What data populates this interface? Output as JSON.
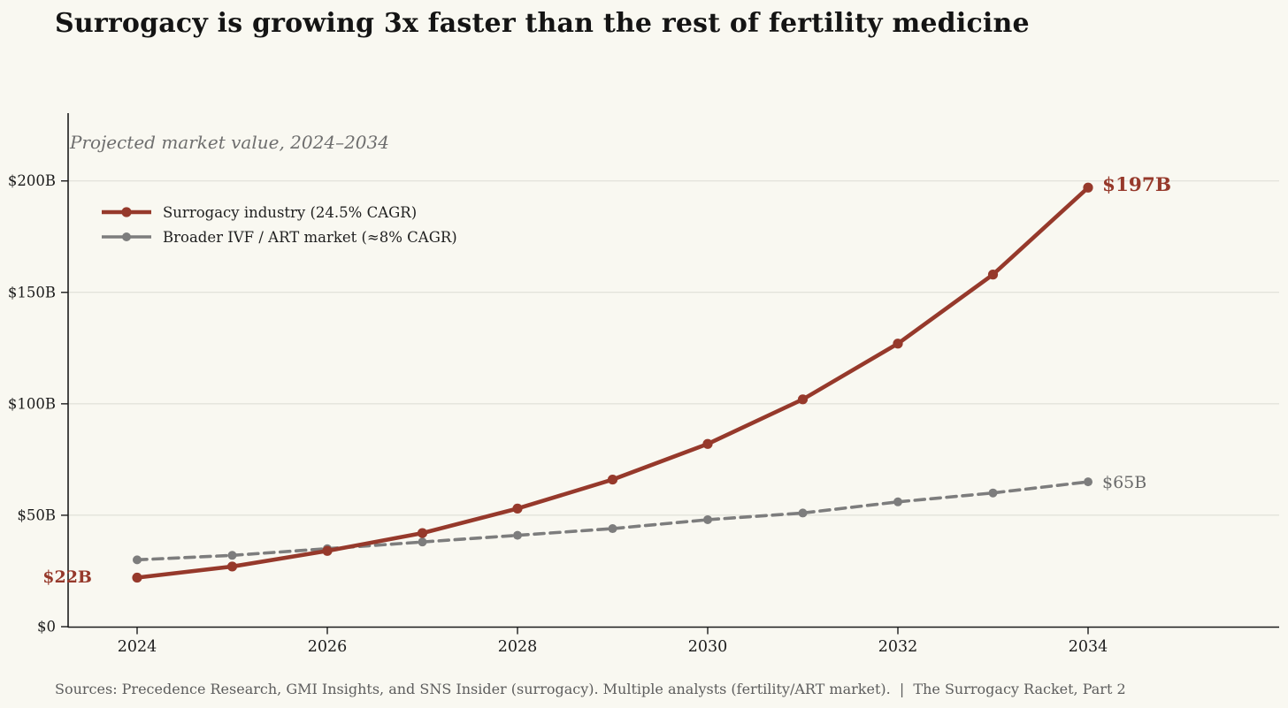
{
  "page": {
    "background_color": "#f9f8f1"
  },
  "header": {
    "title": "Surrogacy is growing 3x faster than the rest of fertility medicine"
  },
  "chart_data": {
    "type": "line",
    "title": "Surrogacy is growing 3x faster than the rest of fertility medicine",
    "subtitle": "Projected market value, 2024–2034",
    "x": [
      2024,
      2025,
      2026,
      2027,
      2028,
      2029,
      2030,
      2031,
      2032,
      2033,
      2034
    ],
    "series": [
      {
        "name": "Surrogacy industry (24.5% CAGR)",
        "color": "#96392b",
        "line_style": "solid",
        "marker": "circle",
        "values": [
          22,
          27,
          34,
          42,
          53,
          66,
          82,
          102,
          127,
          158,
          197
        ]
      },
      {
        "name": "Broader IVF / ART market (≈8% CAGR)",
        "color": "#7d7d7d",
        "line_style": "dashed",
        "marker": "circle",
        "values": [
          30,
          32,
          35,
          38,
          41,
          44,
          48,
          51,
          56,
          60,
          65
        ]
      }
    ],
    "xlabel": "",
    "ylabel": "",
    "ylim": [
      0,
      231
    ],
    "xlim": [
      2023.3,
      2036
    ],
    "grid": "horizontal",
    "legend_position": "upper-left-inside",
    "y_ticks": [
      {
        "value": 0,
        "label": "$0"
      },
      {
        "value": 50,
        "label": "$50B"
      },
      {
        "value": 100,
        "label": "$100B"
      },
      {
        "value": 150,
        "label": "$150B"
      },
      {
        "value": 200,
        "label": "$200B"
      }
    ],
    "x_ticks": [
      {
        "value": 2024,
        "label": "2024"
      },
      {
        "value": 2026,
        "label": "2026"
      },
      {
        "value": 2028,
        "label": "2028"
      },
      {
        "value": 2030,
        "label": "2030"
      },
      {
        "value": 2032,
        "label": "2032"
      },
      {
        "value": 2034,
        "label": "2034"
      }
    ],
    "annotations": [
      {
        "text": "$22B",
        "color": "#96392b",
        "refers_to": "surrogacy-2024"
      },
      {
        "text": "$197B",
        "color": "#96392b",
        "refers_to": "surrogacy-2034"
      },
      {
        "text": "$65B",
        "color": "#6b6b6b",
        "refers_to": "ivf-art-2034"
      }
    ]
  },
  "footer": {
    "sources": "Sources: Precedence Research, GMI Insights, and SNS Insider (surrogacy). Multiple analysts (fertility/ART market).  |  The Surrogacy Racket, Part 2"
  },
  "colors": {
    "accent_red": "#96392b",
    "series_gray": "#7d7d7d",
    "grid_line": "#dcdcd4",
    "axis_line": "#1c1c1c",
    "muted_text": "#6b6b6b"
  }
}
